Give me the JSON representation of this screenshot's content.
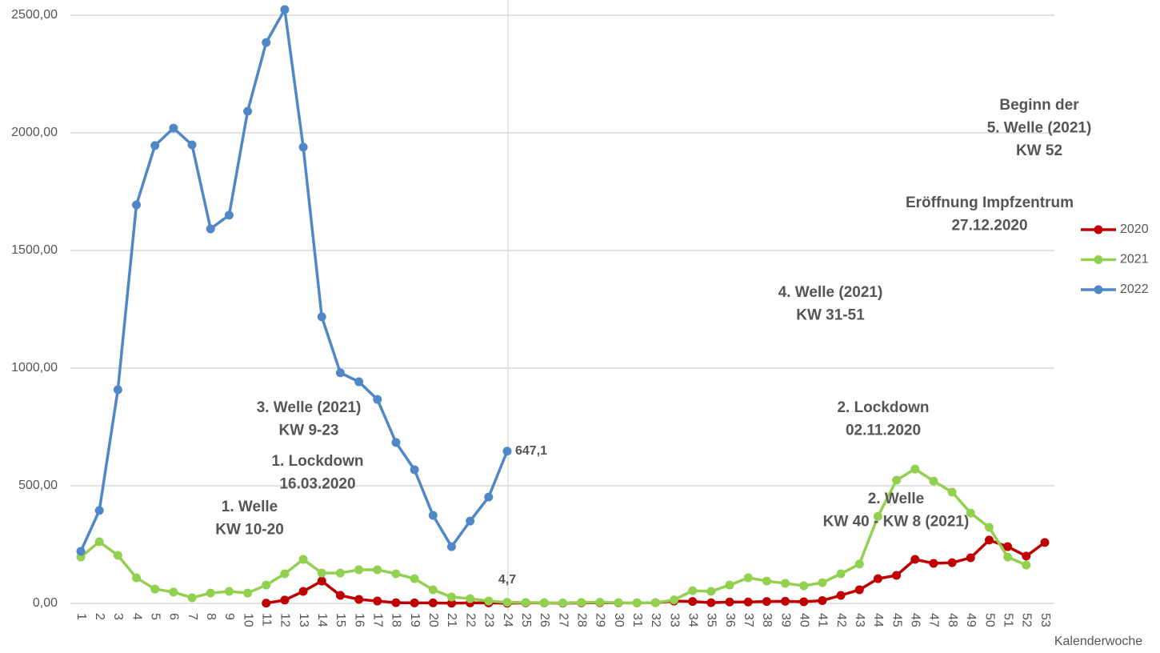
{
  "chart_data": {
    "type": "line",
    "x_label": "Kalenderwoche",
    "categories": [
      "1",
      "2",
      "3",
      "4",
      "5",
      "6",
      "7",
      "8",
      "9",
      "10",
      "11",
      "12",
      "13",
      "14",
      "15",
      "16",
      "17",
      "18",
      "19",
      "20",
      "21",
      "22",
      "23",
      "24",
      "25",
      "26",
      "27",
      "28",
      "29",
      "30",
      "31",
      "32",
      "33",
      "34",
      "35",
      "36",
      "37",
      "38",
      "39",
      "40",
      "41",
      "42",
      "43",
      "44",
      "45",
      "46",
      "47",
      "48",
      "49",
      "50",
      "51",
      "52",
      "53"
    ],
    "series": [
      {
        "name": "2020",
        "color": "#c00000",
        "values": [
          null,
          null,
          null,
          null,
          null,
          null,
          null,
          null,
          null,
          null,
          1,
          14,
          51,
          95,
          34,
          17,
          10,
          3,
          2,
          2,
          1,
          2,
          2,
          1,
          2,
          2,
          1,
          2,
          3,
          2,
          2,
          3,
          10,
          8,
          3,
          6,
          6,
          8,
          9,
          7,
          12,
          34,
          58,
          105,
          119,
          187,
          170,
          173,
          194,
          269,
          241,
          201,
          259
        ]
      },
      {
        "name": "2021",
        "color": "#92d050",
        "values": [
          197,
          262,
          204,
          109,
          61,
          48,
          24,
          44,
          51,
          44,
          78,
          126,
          187,
          129,
          129,
          143,
          143,
          126,
          105,
          58,
          27,
          20,
          10,
          4.7,
          4,
          3,
          2,
          4,
          5,
          3,
          2,
          3,
          15,
          54,
          51,
          78,
          109,
          95,
          85,
          75,
          88,
          126,
          167,
          370,
          524,
          571,
          520,
          473,
          384,
          323,
          197,
          163,
          null
        ],
        "value_labels": [
          null,
          null,
          null,
          null,
          null,
          null,
          null,
          null,
          null,
          null,
          null,
          null,
          null,
          null,
          null,
          null,
          null,
          null,
          null,
          null,
          null,
          null,
          null,
          "4,7",
          null,
          null,
          null,
          null,
          null,
          null,
          null,
          null,
          null,
          null,
          null,
          null,
          null,
          null,
          null,
          null,
          null,
          null,
          null,
          null,
          null,
          null,
          null,
          null,
          null,
          null,
          null,
          null,
          null
        ]
      },
      {
        "name": "2022",
        "color": "#4f87c7",
        "values": [
          221,
          395,
          908,
          1694,
          1946,
          2020,
          1949,
          1592,
          1650,
          2092,
          2384,
          2524,
          1939,
          1218,
          980,
          942,
          867,
          684,
          568,
          374,
          241,
          350,
          452,
          647.1,
          null,
          null,
          null,
          null,
          null,
          null,
          null,
          null,
          null,
          null,
          null,
          null,
          null,
          null,
          null,
          null,
          null,
          null,
          null,
          null,
          null,
          null,
          null,
          null,
          null,
          null,
          null,
          null,
          null
        ],
        "value_labels": [
          null,
          null,
          null,
          null,
          null,
          null,
          null,
          null,
          null,
          null,
          null,
          null,
          null,
          null,
          null,
          null,
          null,
          null,
          null,
          null,
          null,
          null,
          null,
          "647,1",
          null,
          null,
          null,
          null,
          null,
          null,
          null,
          null,
          null,
          null,
          null,
          null,
          null,
          null,
          null,
          null,
          null,
          null,
          null,
          null,
          null,
          null,
          null,
          null,
          null,
          null,
          null,
          null,
          null
        ]
      }
    ],
    "ylim": [
      0,
      2500
    ],
    "yticks": [
      {
        "value": 0,
        "label": "0,00"
      },
      {
        "value": 500,
        "label": "500,00"
      },
      {
        "value": 1000,
        "label": "1000,00"
      },
      {
        "value": 1500,
        "label": "1500,00"
      },
      {
        "value": 2000,
        "label": "2000,00"
      },
      {
        "value": 2500,
        "label": "2500,00"
      }
    ],
    "grid": true,
    "legend": "right",
    "annotations": [
      {
        "lines": [
          "Beginn der",
          "5. Welle (2021)",
          "KW 52"
        ],
        "color": "#8fce4f"
      },
      {
        "lines": [
          "Eröffnung Impfzentrum",
          "27.12.2020"
        ],
        "color": "#a50f0f"
      },
      {
        "lines": [
          "4. Welle (2021)",
          "KW 31-51"
        ],
        "color": "#8fce4f"
      },
      {
        "lines": [
          "2. Lockdown",
          "02.11.2020"
        ],
        "color": "#a50f0f"
      },
      {
        "lines": [
          "3. Welle (2021)",
          "KW 9-23"
        ],
        "color": "#8fce4f"
      },
      {
        "lines": [
          "1. Lockdown",
          "16.03.2020"
        ],
        "color": "#a50f0f"
      },
      {
        "lines": [
          "1. Welle",
          "KW 10-20"
        ],
        "color": "#a50f0f"
      },
      {
        "lines": [
          "2. Welle",
          "KW 40 - KW 8 (2021)"
        ],
        "color": "#a50f0f"
      }
    ]
  }
}
